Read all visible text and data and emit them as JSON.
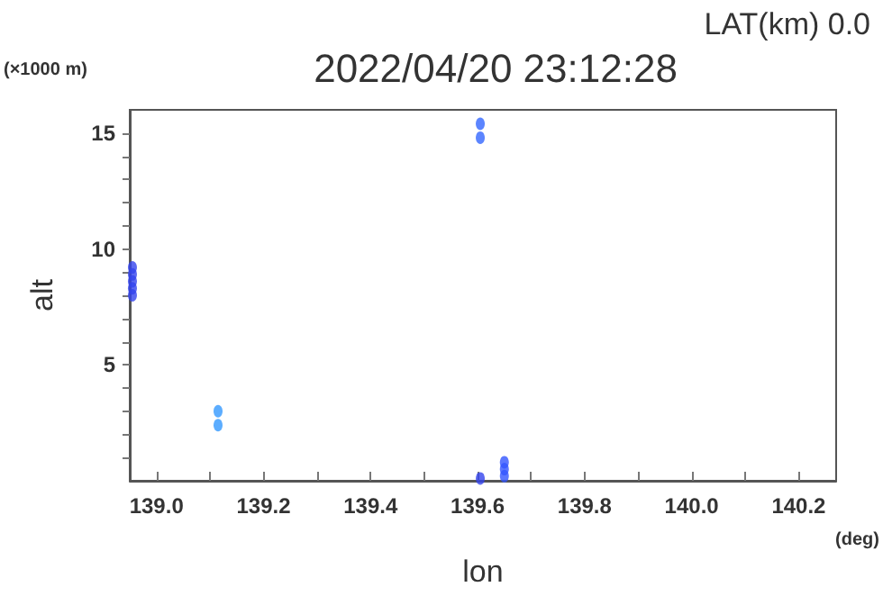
{
  "chart_data": {
    "type": "scatter",
    "title": "2022/04/20 23:12:28",
    "subtitle": "LAT(km) 0.0",
    "xlabel": "lon",
    "ylabel": "alt",
    "annotations": [
      "(×1000 m)",
      "(deg)"
    ],
    "xlim": [
      138.95,
      140.27
    ],
    "ylim": [
      0,
      16
    ],
    "xticks": [
      {
        "value": 139.0,
        "label": "139.0"
      },
      {
        "value": 139.1,
        "label": null
      },
      {
        "value": 139.2,
        "label": "139.2"
      },
      {
        "value": 139.3,
        "label": null
      },
      {
        "value": 139.4,
        "label": "139.4"
      },
      {
        "value": 139.5,
        "label": null
      },
      {
        "value": 139.6,
        "label": "139.6"
      },
      {
        "value": 139.7,
        "label": null
      },
      {
        "value": 139.8,
        "label": "139.8"
      },
      {
        "value": 139.9,
        "label": null
      },
      {
        "value": 140.0,
        "label": "140.0"
      },
      {
        "value": 140.1,
        "label": null
      },
      {
        "value": 140.2,
        "label": "140.2"
      }
    ],
    "yticks": [
      {
        "value": 1,
        "label": null
      },
      {
        "value": 2,
        "label": null
      },
      {
        "value": 3,
        "label": null
      },
      {
        "value": 4,
        "label": null
      },
      5,
      {
        "value": 6,
        "label": null
      },
      {
        "value": 7,
        "label": null
      },
      {
        "value": 8,
        "label": null
      },
      {
        "value": 9,
        "label": null
      },
      10,
      {
        "value": 11,
        "label": null
      },
      {
        "value": 12,
        "label": null
      },
      {
        "value": 13,
        "label": null
      },
      {
        "value": 14,
        "label": null
      },
      15
    ],
    "grid": false,
    "marker": "circle",
    "series": [
      {
        "color": "#3344ee",
        "x": [
          138.955,
          138.955,
          138.955,
          138.955,
          138.955
        ],
        "values": [
          8.0,
          8.3,
          8.6,
          8.9,
          9.2
        ]
      },
      {
        "color": "#3399ff",
        "x": [
          139.115,
          139.115
        ],
        "values": [
          2.4,
          3.0
        ]
      },
      {
        "color": "#3366ff",
        "x": [
          139.605,
          139.605
        ],
        "values": [
          14.8,
          15.4
        ]
      },
      {
        "color": "#3344ee",
        "x": [
          139.605
        ],
        "values": [
          0.1
        ]
      },
      {
        "color": "#3355ff",
        "x": [
          139.65,
          139.65,
          139.65
        ],
        "values": [
          0.2,
          0.5,
          0.8
        ]
      }
    ]
  }
}
